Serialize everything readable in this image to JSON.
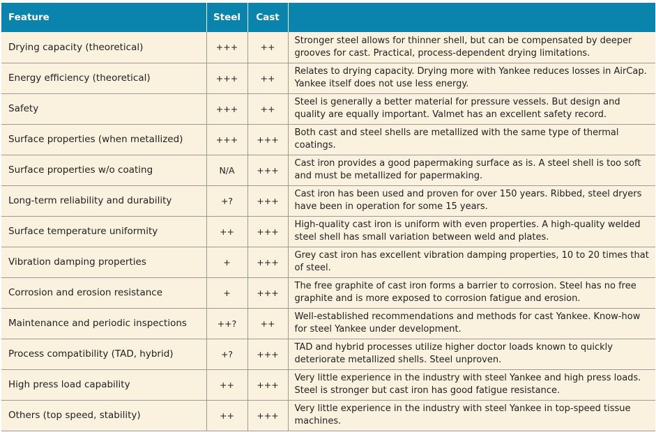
{
  "table": {
    "headers": {
      "feature": "Feature",
      "steel": "Steel",
      "cast": "Cast",
      "comment": ""
    },
    "rows": [
      {
        "feature": "Drying capacity (theoretical)",
        "steel": "+++",
        "cast": "++",
        "comment": "Stronger steel allows for thinner shell, but can be compensated by deeper grooves for cast. Practical, process-dependent drying limitations."
      },
      {
        "feature": "Energy efficiency (theoretical)",
        "steel": "+++",
        "cast": "++",
        "comment": "Relates to drying capacity. Drying more with Yankee reduces losses in AirCap. Yankee itself does not use less energy."
      },
      {
        "feature": "Safety",
        "steel": "+++",
        "cast": "++",
        "comment": "Steel is generally a better material for pressure vessels. But design and quality are equally important. Valmet has an excellent safety record."
      },
      {
        "feature": "Surface properties (when metallized)",
        "steel": "+++",
        "cast": "+++",
        "comment": "Both cast and steel shells are metallized with the same type of thermal coatings."
      },
      {
        "feature": "Surface properties w/o coating",
        "steel": "N/A",
        "cast": "+++",
        "comment": "Cast iron provides a good papermaking surface as is. A steel shell is too soft and must be metallized for papermaking."
      },
      {
        "feature": "Long-term reliability and durability",
        "steel": "+?",
        "cast": "+++",
        "comment": "Cast iron has been used and proven for over 150 years. Ribbed, steel dryers have been in operation for some 15 years."
      },
      {
        "feature": "Surface temperature uniformity",
        "steel": "++",
        "cast": "+++",
        "comment": "High-quality cast iron is uniform with even properties. A high-quality welded steel shell has small variation between weld and plates."
      },
      {
        "feature": "Vibration damping properties",
        "steel": "+",
        "cast": "+++",
        "comment": "Grey cast iron has excellent vibration damping properties, 10 to 20 times that of steel."
      },
      {
        "feature": "Corrosion and erosion resistance",
        "steel": "+",
        "cast": "+++",
        "comment": "The free graphite of cast iron forms a barrier to corrosion. Steel has no free graphite and is more exposed to corrosion fatigue and erosion."
      },
      {
        "feature": "Maintenance and periodic inspections",
        "steel": "++?",
        "cast": "++",
        "comment": "Well-established recommendations and methods for cast Yankee. Know-how for steel Yankee under development."
      },
      {
        "feature": "Process compatibility (TAD, hybrid)",
        "steel": "+?",
        "cast": "+++",
        "comment": "TAD and hybrid processes utilize higher doctor loads known to quickly deteriorate metallized shells. Steel unproven."
      },
      {
        "feature": "High press load capability",
        "steel": "++",
        "cast": "+++",
        "comment": "Very little experience in the industry with steel Yankee and high press loads. Steel is stronger but cast iron has good fatigue resistance."
      },
      {
        "feature": "Others (top speed, stability)",
        "steel": "++",
        "cast": "+++",
        "comment": "Very little experience in the industry with steel Yankee in top-speed tissue machines."
      }
    ]
  },
  "colors": {
    "header_bg": "#0a83ad",
    "row_bg": "#faf1df",
    "grid": "#9a9a9a"
  }
}
